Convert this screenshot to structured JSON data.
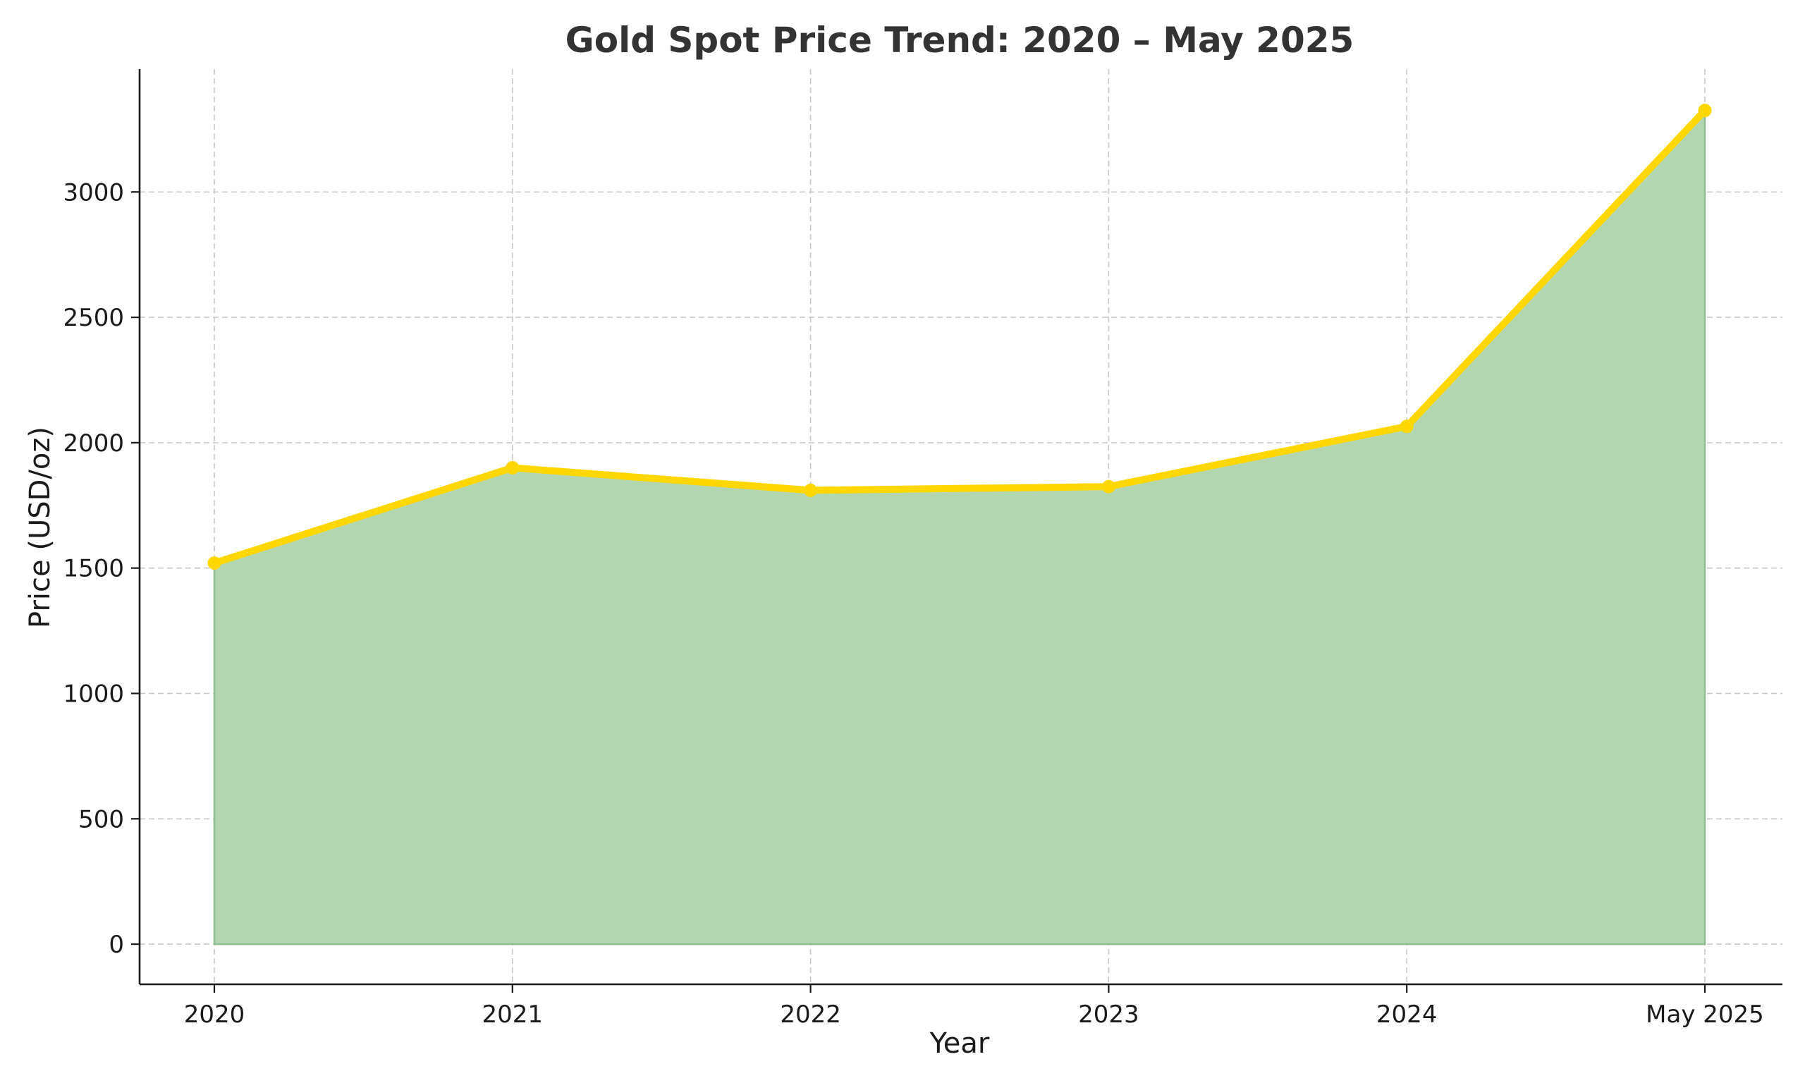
{
  "chart_data": {
    "type": "area",
    "title": "Gold Spot Price Trend: 2020 – May 2025",
    "xlabel": "Year",
    "ylabel": "Price (USD/oz)",
    "categories": [
      "2020",
      "2021",
      "2022",
      "2023",
      "2024",
      "May 2025"
    ],
    "values": [
      1520,
      1900,
      1810,
      1825,
      2065,
      3325
    ],
    "ylim": [
      -160,
      3490
    ],
    "yticks": [
      0,
      500,
      1000,
      1500,
      2000,
      2500,
      3000
    ],
    "ytick_labels": [
      "0",
      "500",
      "1000",
      "1500",
      "2000",
      "2500",
      "3000"
    ],
    "grid": true,
    "line_color": "#FFD700",
    "fill_color": "#B2D6B0",
    "fill_edge_color": "#8FBF8C"
  }
}
